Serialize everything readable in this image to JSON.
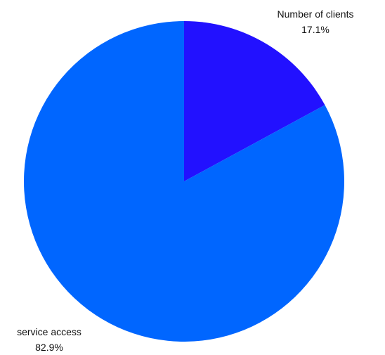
{
  "chart_data": {
    "type": "pie",
    "title": "",
    "start_angle_deg": 0,
    "direction": "clockwise",
    "slices": [
      {
        "label": "Number of clients",
        "value": 17.1,
        "percent_label": "17.1%",
        "color": "#2211ff"
      },
      {
        "label": "service access",
        "value": 82.9,
        "percent_label": "82.9%",
        "color": "#0066ff"
      }
    ],
    "legend": "none"
  }
}
